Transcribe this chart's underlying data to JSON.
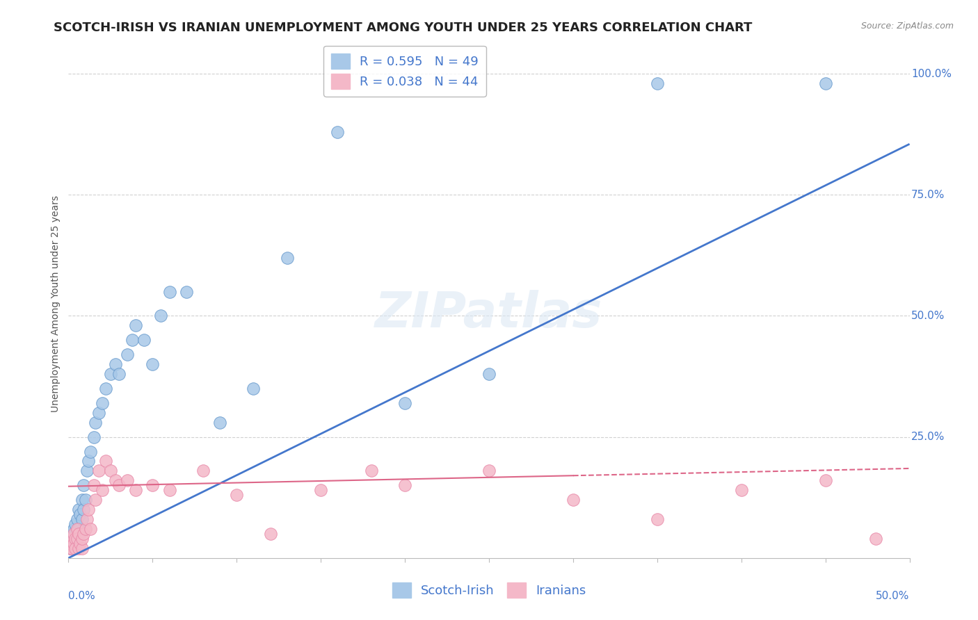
{
  "title": "SCOTCH-IRISH VS IRANIAN UNEMPLOYMENT AMONG YOUTH UNDER 25 YEARS CORRELATION CHART",
  "source": "Source: ZipAtlas.com",
  "ylabel": "Unemployment Among Youth under 25 years",
  "xmin": 0.0,
  "xmax": 0.5,
  "ymin": 0.0,
  "ymax": 1.05,
  "yticks": [
    0.25,
    0.5,
    0.75,
    1.0
  ],
  "ytick_labels": [
    "25.0%",
    "50.0%",
    "75.0%",
    "100.0%"
  ],
  "blue_R": 0.595,
  "blue_N": 49,
  "pink_R": 0.038,
  "pink_N": 44,
  "blue_color": "#a8c8e8",
  "pink_color": "#f4b8c8",
  "blue_edge_color": "#6699cc",
  "pink_edge_color": "#e888a8",
  "blue_line_color": "#4477cc",
  "pink_line_color": "#dd6688",
  "legend_label_blue": "Scotch-Irish",
  "legend_label_pink": "Iranians",
  "watermark": "ZIPatlas",
  "scotch_irish_x": [
    0.001,
    0.001,
    0.001,
    0.002,
    0.002,
    0.002,
    0.003,
    0.003,
    0.003,
    0.004,
    0.004,
    0.005,
    0.005,
    0.006,
    0.006,
    0.007,
    0.007,
    0.008,
    0.008,
    0.009,
    0.009,
    0.01,
    0.011,
    0.012,
    0.013,
    0.015,
    0.016,
    0.018,
    0.02,
    0.022,
    0.025,
    0.028,
    0.03,
    0.035,
    0.038,
    0.04,
    0.045,
    0.05,
    0.055,
    0.06,
    0.07,
    0.09,
    0.11,
    0.13,
    0.16,
    0.2,
    0.25,
    0.35,
    0.45
  ],
  "scotch_irish_y": [
    0.02,
    0.03,
    0.04,
    0.02,
    0.05,
    0.03,
    0.04,
    0.06,
    0.03,
    0.05,
    0.07,
    0.04,
    0.08,
    0.06,
    0.1,
    0.05,
    0.09,
    0.08,
    0.12,
    0.1,
    0.15,
    0.12,
    0.18,
    0.2,
    0.22,
    0.25,
    0.28,
    0.3,
    0.32,
    0.35,
    0.38,
    0.4,
    0.38,
    0.42,
    0.45,
    0.48,
    0.45,
    0.4,
    0.5,
    0.55,
    0.55,
    0.28,
    0.35,
    0.62,
    0.88,
    0.32,
    0.38,
    0.98,
    0.98
  ],
  "iranians_x": [
    0.001,
    0.001,
    0.002,
    0.002,
    0.003,
    0.003,
    0.004,
    0.004,
    0.005,
    0.005,
    0.006,
    0.006,
    0.007,
    0.008,
    0.008,
    0.009,
    0.01,
    0.011,
    0.012,
    0.013,
    0.015,
    0.016,
    0.018,
    0.02,
    0.022,
    0.025,
    0.028,
    0.03,
    0.035,
    0.04,
    0.05,
    0.06,
    0.08,
    0.1,
    0.12,
    0.15,
    0.18,
    0.2,
    0.25,
    0.3,
    0.35,
    0.4,
    0.45,
    0.48
  ],
  "iranians_y": [
    0.02,
    0.03,
    0.04,
    0.02,
    0.05,
    0.03,
    0.04,
    0.02,
    0.06,
    0.04,
    0.05,
    0.02,
    0.03,
    0.02,
    0.04,
    0.05,
    0.06,
    0.08,
    0.1,
    0.06,
    0.15,
    0.12,
    0.18,
    0.14,
    0.2,
    0.18,
    0.16,
    0.15,
    0.16,
    0.14,
    0.15,
    0.14,
    0.18,
    0.13,
    0.05,
    0.14,
    0.18,
    0.15,
    0.18,
    0.12,
    0.08,
    0.14,
    0.16,
    0.04
  ],
  "blue_trend_x0": 0.0,
  "blue_trend_y0": 0.0,
  "blue_trend_x1": 0.5,
  "blue_trend_y1": 0.855,
  "pink_trend_x0": 0.0,
  "pink_trend_y0": 0.148,
  "pink_trend_x1": 0.5,
  "pink_trend_y1": 0.185,
  "background_color": "#ffffff",
  "grid_color": "#cccccc",
  "title_fontsize": 13,
  "axis_label_fontsize": 10,
  "tick_fontsize": 11,
  "legend_fontsize": 13
}
